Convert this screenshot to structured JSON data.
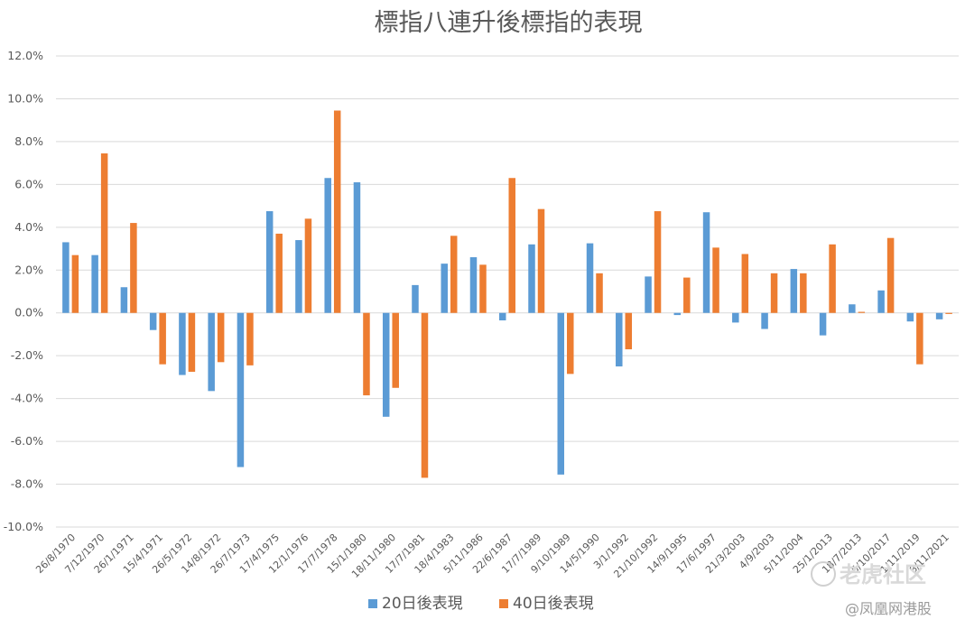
{
  "chart_data": {
    "type": "bar",
    "title": "標指八連升後標指的表現",
    "xlabel": "",
    "ylabel": "",
    "ylim": [
      -10,
      12
    ],
    "yticks": [
      12,
      10,
      8,
      6,
      4,
      2,
      0,
      -2,
      -4,
      -6,
      -8,
      -10
    ],
    "ytick_labels": [
      "12.0%",
      "10.0%",
      "8.0%",
      "6.0%",
      "4.0%",
      "2.0%",
      "0.0%",
      "-2.0%",
      "-4.0%",
      "-6.0%",
      "-8.0%",
      "-10.0%"
    ],
    "grid": true,
    "legend_position": "bottom",
    "categories": [
      "26/8/1970",
      "7/12/1970",
      "26/1/1971",
      "15/4/1971",
      "26/5/1972",
      "14/8/1972",
      "26/7/1973",
      "17/4/1975",
      "12/1/1976",
      "17/7/1978",
      "15/1/1980",
      "18/11/1980",
      "17/7/1981",
      "18/4/1983",
      "5/11/1986",
      "22/6/1987",
      "17/7/1989",
      "9/10/1989",
      "14/5/1990",
      "3/1/1992",
      "21/10/1992",
      "14/9/1995",
      "17/6/1997",
      "21/3/2003",
      "4/9/2003",
      "5/11/2004",
      "25/1/2013",
      "18/7/2013",
      "5/10/2017",
      "1/11/2019",
      "8/11/2021"
    ],
    "series": [
      {
        "name": "20日後表現",
        "color": "#5B9BD5",
        "values": [
          3.3,
          2.7,
          1.2,
          -0.8,
          -2.9,
          -3.65,
          -7.2,
          4.75,
          3.4,
          6.3,
          6.1,
          -4.85,
          1.3,
          2.3,
          2.6,
          -0.35,
          3.2,
          -7.55,
          3.25,
          -2.5,
          1.7,
          -0.1,
          4.7,
          -0.45,
          -0.75,
          2.05,
          -1.05,
          0.4,
          1.05,
          -0.4,
          -0.3
        ]
      },
      {
        "name": "40日後表現",
        "color": "#ED7D31",
        "values": [
          2.7,
          7.45,
          4.2,
          -2.4,
          -2.75,
          -2.3,
          -2.45,
          3.7,
          4.4,
          9.45,
          -3.85,
          -3.5,
          -7.7,
          3.6,
          2.25,
          6.3,
          4.85,
          -2.85,
          1.85,
          -1.7,
          4.75,
          1.65,
          3.05,
          2.75,
          1.85,
          1.85,
          3.2,
          0.05,
          3.5,
          -2.4,
          -0.05
        ]
      }
    ]
  },
  "watermark": {
    "logo_text": "老虎社区",
    "credit_text": "@凤凰网港股"
  }
}
